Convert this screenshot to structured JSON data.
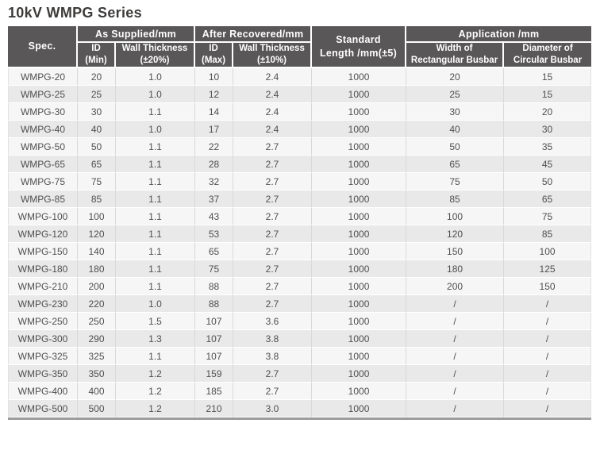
{
  "page": {
    "title": "10kV WMPG Series"
  },
  "colors": {
    "header_bg": "#595757",
    "header_text": "#ffffff",
    "row_odd_bg": "#f6f6f6",
    "row_even_bg": "#e9e9e9",
    "cell_text": "#4f4f4f",
    "column_separator": "#d9d9d9",
    "table_bottom_border": "#9c9c9c",
    "title_text": "#3d3b3a"
  },
  "table": {
    "headers": {
      "spec": "Spec.",
      "as_supplied_group": "As Supplied/mm",
      "after_recovered_group": "After Recovered/mm",
      "standard_length": "Standard\nLength /mm(±5)",
      "application_group": "Application /mm",
      "id_min": "ID\n(Min)",
      "wall_thickness_20": "Wall Thickness\n(±20%)",
      "id_max": "ID\n(Max)",
      "wall_thickness_10": "Wall Thickness\n(±10%)",
      "width_rectangular": "Width of\nRectangular Busbar",
      "diameter_circular": "Diameter of\nCircular Busbar"
    },
    "rows": [
      [
        "WMPG-20",
        "20",
        "1.0",
        "10",
        "2.4",
        "1000",
        "20",
        "15"
      ],
      [
        "WMPG-25",
        "25",
        "1.0",
        "12",
        "2.4",
        "1000",
        "25",
        "15"
      ],
      [
        "WMPG-30",
        "30",
        "1.1",
        "14",
        "2.4",
        "1000",
        "30",
        "20"
      ],
      [
        "WMPG-40",
        "40",
        "1.0",
        "17",
        "2.4",
        "1000",
        "40",
        "30"
      ],
      [
        "WMPG-50",
        "50",
        "1.1",
        "22",
        "2.7",
        "1000",
        "50",
        "35"
      ],
      [
        "WMPG-65",
        "65",
        "1.1",
        "28",
        "2.7",
        "1000",
        "65",
        "45"
      ],
      [
        "WMPG-75",
        "75",
        "1.1",
        "32",
        "2.7",
        "1000",
        "75",
        "50"
      ],
      [
        "WMPG-85",
        "85",
        "1.1",
        "37",
        "2.7",
        "1000",
        "85",
        "65"
      ],
      [
        "WMPG-100",
        "100",
        "1.1",
        "43",
        "2.7",
        "1000",
        "100",
        "75"
      ],
      [
        "WMPG-120",
        "120",
        "1.1",
        "53",
        "2.7",
        "1000",
        "120",
        "85"
      ],
      [
        "WMPG-150",
        "140",
        "1.1",
        "65",
        "2.7",
        "1000",
        "150",
        "100"
      ],
      [
        "WMPG-180",
        "180",
        "1.1",
        "75",
        "2.7",
        "1000",
        "180",
        "125"
      ],
      [
        "WMPG-210",
        "200",
        "1.1",
        "88",
        "2.7",
        "1000",
        "200",
        "150"
      ],
      [
        "WMPG-230",
        "220",
        "1.0",
        "88",
        "2.7",
        "1000",
        "/",
        "/"
      ],
      [
        "WMPG-250",
        "250",
        "1.5",
        "107",
        "3.6",
        "1000",
        "/",
        "/"
      ],
      [
        "WMPG-300",
        "290",
        "1.3",
        "107",
        "3.8",
        "1000",
        "/",
        "/"
      ],
      [
        "WMPG-325",
        "325",
        "1.1",
        "107",
        "3.8",
        "1000",
        "/",
        "/"
      ],
      [
        "WMPG-350",
        "350",
        "1.2",
        "159",
        "2.7",
        "1000",
        "/",
        "/"
      ],
      [
        "WMPG-400",
        "400",
        "1.2",
        "185",
        "2.7",
        "1000",
        "/",
        "/"
      ],
      [
        "WMPG-500",
        "500",
        "1.2",
        "210",
        "3.0",
        "1000",
        "/",
        "/"
      ]
    ]
  }
}
